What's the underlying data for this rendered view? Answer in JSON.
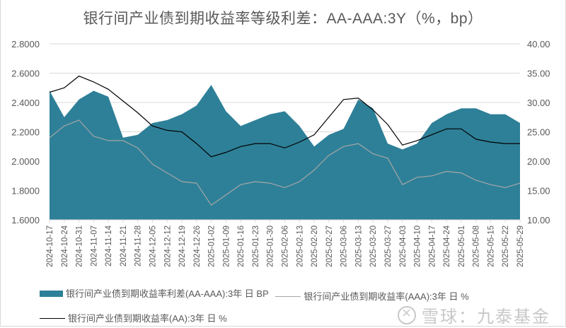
{
  "title": "银行间产业债到期收益率等级利差：AA-AAA:3Y（%，bp）",
  "legend": {
    "spread": "银行间产业债到期收益率利差(AA-AAA):3年 日 BP",
    "aaa": "银行间产业债到期收益率(AAA):3年 日 %",
    "aa": "银行间产业债到期收益率(AA):3年 日 %"
  },
  "watermark": "雪球：九泰基金",
  "colors": {
    "spread": "#2e8098",
    "aaa": "#a6a6a6",
    "aa": "#000000",
    "grid": "#d9d9d9",
    "text": "#595959"
  },
  "chart_data": {
    "type": "area+line",
    "title": "银行间产业债到期收益率等级利差：AA-AAA:3Y（%，bp）",
    "xlabel": "",
    "ylabel_left": "%",
    "ylabel_right": "bp",
    "ylim_left": [
      1.6,
      2.8
    ],
    "ylim_right": [
      10,
      40
    ],
    "yticks_left": [
      "1.6000",
      "1.8000",
      "2.0000",
      "2.2000",
      "2.4000",
      "2.6000",
      "2.8000"
    ],
    "yticks_right": [
      "10.00",
      "15.00",
      "20.00",
      "25.00",
      "30.00",
      "35.00",
      "40.00"
    ],
    "grid": true,
    "legend_position": "bottom",
    "categories": [
      "2024-10-17",
      "2024-10-24",
      "2024-10-31",
      "2024-11-07",
      "2024-11-14",
      "2024-11-21",
      "2024-11-28",
      "2024-12-05",
      "2024-12-12",
      "2024-12-19",
      "2024-12-26",
      "2025-01-02",
      "2025-01-09",
      "2025-01-16",
      "2025-01-23",
      "2025-01-30",
      "2025-02-06",
      "2025-02-13",
      "2025-02-20",
      "2025-02-27",
      "2025-03-06",
      "2025-03-13",
      "2025-03-20",
      "2025-03-27",
      "2025-04-03",
      "2025-04-10",
      "2025-04-17",
      "2025-04-24",
      "2025-05-01",
      "2025-05-08",
      "2025-05-15",
      "2025-05-22",
      "2025-05-29"
    ],
    "series": [
      {
        "name": "银行间产业债到期收益率利差(AA-AAA):3年 日 BP",
        "axis": "right",
        "kind": "area",
        "values": [
          32.0,
          27.5,
          30.5,
          32.0,
          31.0,
          24.0,
          24.5,
          26.5,
          27.0,
          28.0,
          29.5,
          33.0,
          28.5,
          26.0,
          27.0,
          28.0,
          28.5,
          26.0,
          22.5,
          24.5,
          25.5,
          30.5,
          29.0,
          23.0,
          22.0,
          23.0,
          26.5,
          28.0,
          29.0,
          29.0,
          28.0,
          28.0,
          26.5
        ]
      },
      {
        "name": "银行间产业债到期收益率(AAA):3年 日 %",
        "axis": "left",
        "kind": "line",
        "values": [
          2.16,
          2.24,
          2.28,
          2.17,
          2.14,
          2.14,
          2.09,
          1.98,
          1.92,
          1.86,
          1.85,
          1.7,
          1.77,
          1.84,
          1.86,
          1.85,
          1.82,
          1.86,
          1.94,
          2.04,
          2.1,
          2.12,
          2.05,
          2.02,
          1.84,
          1.89,
          1.9,
          1.93,
          1.92,
          1.87,
          1.84,
          1.82,
          1.85
        ]
      },
      {
        "name": "银行间产业债到期收益率(AA):3年 日 %",
        "axis": "left",
        "kind": "line",
        "values": [
          2.47,
          2.5,
          2.58,
          2.54,
          2.49,
          2.41,
          2.33,
          2.24,
          2.21,
          2.2,
          2.12,
          2.03,
          2.06,
          2.1,
          2.12,
          2.12,
          2.09,
          2.13,
          2.18,
          2.3,
          2.42,
          2.43,
          2.35,
          2.25,
          2.11,
          2.14,
          2.18,
          2.22,
          2.22,
          2.15,
          2.13,
          2.12,
          2.12
        ]
      }
    ]
  }
}
